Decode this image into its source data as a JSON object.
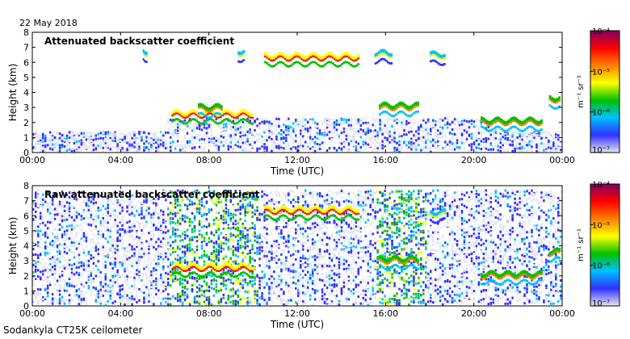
{
  "header": {
    "date": "22 May 2018"
  },
  "footer": {
    "instrument": "Sodankyla CT25K ceilometer"
  },
  "colorbar": {
    "unit": "m⁻¹ sr⁻¹",
    "tick_labels": [
      "10⁻⁴",
      "10⁻⁵",
      "10⁻⁶",
      "10⁻⁷"
    ],
    "colors": [
      "#e6e6f0",
      "#3030ff",
      "#00c0ff",
      "#00c000",
      "#ffff00",
      "#ff8000",
      "#ff0000",
      "#800060"
    ]
  },
  "chart_data": [
    {
      "type": "heatmap",
      "title": "Attenuated backscatter coefficient",
      "xlabel": "Time (UTC)",
      "ylabel": "Height (km)",
      "x_ticks": [
        "00:00",
        "04:00",
        "08:00",
        "12:00",
        "16:00",
        "20:00",
        "00:00"
      ],
      "y_ticks": [
        "0",
        "1",
        "2",
        "3",
        "4",
        "5",
        "6",
        "7",
        "8"
      ],
      "xlim_hours": [
        0,
        24
      ],
      "ylim_km": [
        0,
        8
      ],
      "color_scale": "log",
      "color_range": [
        1e-07,
        0.0001
      ],
      "features": [
        {
          "start_h": 6.3,
          "end_h": 10.0,
          "height_km": 2.4,
          "level": 5
        },
        {
          "start_h": 7.5,
          "end_h": 8.6,
          "height_km": 2.8,
          "level": 4
        },
        {
          "start_h": 10.5,
          "end_h": 14.8,
          "height_km": 6.2,
          "level": 5
        },
        {
          "start_h": 5.0,
          "end_h": 5.2,
          "height_km": 6.5,
          "level": 3
        },
        {
          "start_h": 9.3,
          "end_h": 9.6,
          "height_km": 6.5,
          "level": 3
        },
        {
          "start_h": 15.5,
          "end_h": 16.3,
          "height_km": 6.4,
          "level": 3
        },
        {
          "start_h": 15.7,
          "end_h": 17.5,
          "height_km": 2.9,
          "level": 4
        },
        {
          "start_h": 18.0,
          "end_h": 18.7,
          "height_km": 6.3,
          "level": 3
        },
        {
          "start_h": 20.3,
          "end_h": 23.1,
          "height_km": 1.9,
          "level": 4
        },
        {
          "start_h": 23.4,
          "end_h": 23.9,
          "height_km": 3.4,
          "level": 4
        }
      ]
    },
    {
      "type": "heatmap",
      "title": "Raw attenuated backscatter coefficient",
      "xlabel": "Time (UTC)",
      "ylabel": "Height (km)",
      "x_ticks": [
        "00:00",
        "04:00",
        "08:00",
        "12:00",
        "16:00",
        "20:00",
        "00:00"
      ],
      "y_ticks": [
        "0",
        "1",
        "2",
        "3",
        "4",
        "5",
        "6",
        "7",
        "8"
      ],
      "xlim_hours": [
        0,
        24
      ],
      "ylim_km": [
        0,
        8
      ],
      "color_scale": "log",
      "color_range": [
        1e-07,
        0.0001
      ],
      "features": [
        {
          "start_h": 6.3,
          "end_h": 10.0,
          "height_km": 2.4,
          "level": 5
        },
        {
          "start_h": 10.5,
          "end_h": 14.8,
          "height_km": 6.2,
          "level": 5
        },
        {
          "start_h": 15.7,
          "end_h": 17.5,
          "height_km": 2.9,
          "level": 4
        },
        {
          "start_h": 18.0,
          "end_h": 18.7,
          "height_km": 6.0,
          "level": 3
        },
        {
          "start_h": 20.3,
          "end_h": 23.1,
          "height_km": 1.9,
          "level": 4
        },
        {
          "start_h": 23.4,
          "end_h": 23.9,
          "height_km": 3.4,
          "level": 4
        }
      ]
    }
  ]
}
